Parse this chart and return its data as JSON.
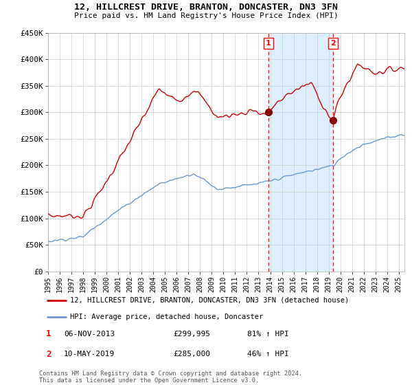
{
  "title": "12, HILLCREST DRIVE, BRANTON, DONCASTER, DN3 3FN",
  "subtitle": "Price paid vs. HM Land Registry's House Price Index (HPI)",
  "ylim": [
    0,
    450000
  ],
  "yticks": [
    0,
    50000,
    100000,
    150000,
    200000,
    250000,
    300000,
    350000,
    400000,
    450000
  ],
  "ytick_labels": [
    "£0",
    "£50K",
    "£100K",
    "£150K",
    "£200K",
    "£250K",
    "£300K",
    "£350K",
    "£400K",
    "£450K"
  ],
  "xlim_start": 1995.0,
  "xlim_end": 2025.5,
  "red_line_color": "#cc0000",
  "blue_line_color": "#6699cc",
  "shaded_region_color": "#ddeeff",
  "transaction1_x": 2013.85,
  "transaction1_y": 299995,
  "transaction1_label": "1",
  "transaction1_date": "06-NOV-2013",
  "transaction1_price": "£299,995",
  "transaction1_hpi": "81% ↑ HPI",
  "transaction2_x": 2019.37,
  "transaction2_y": 285000,
  "transaction2_label": "2",
  "transaction2_date": "10-MAY-2019",
  "transaction2_price": "£285,000",
  "transaction2_hpi": "46% ↑ HPI",
  "legend_line1": "12, HILLCREST DRIVE, BRANTON, DONCASTER, DN3 3FN (detached house)",
  "legend_line2": "HPI: Average price, detached house, Doncaster",
  "footer": "Contains HM Land Registry data © Crown copyright and database right 2024.\nThis data is licensed under the Open Government Licence v3.0.",
  "background_color": "#ffffff",
  "plot_background": "#ffffff",
  "grid_color": "#cccccc"
}
